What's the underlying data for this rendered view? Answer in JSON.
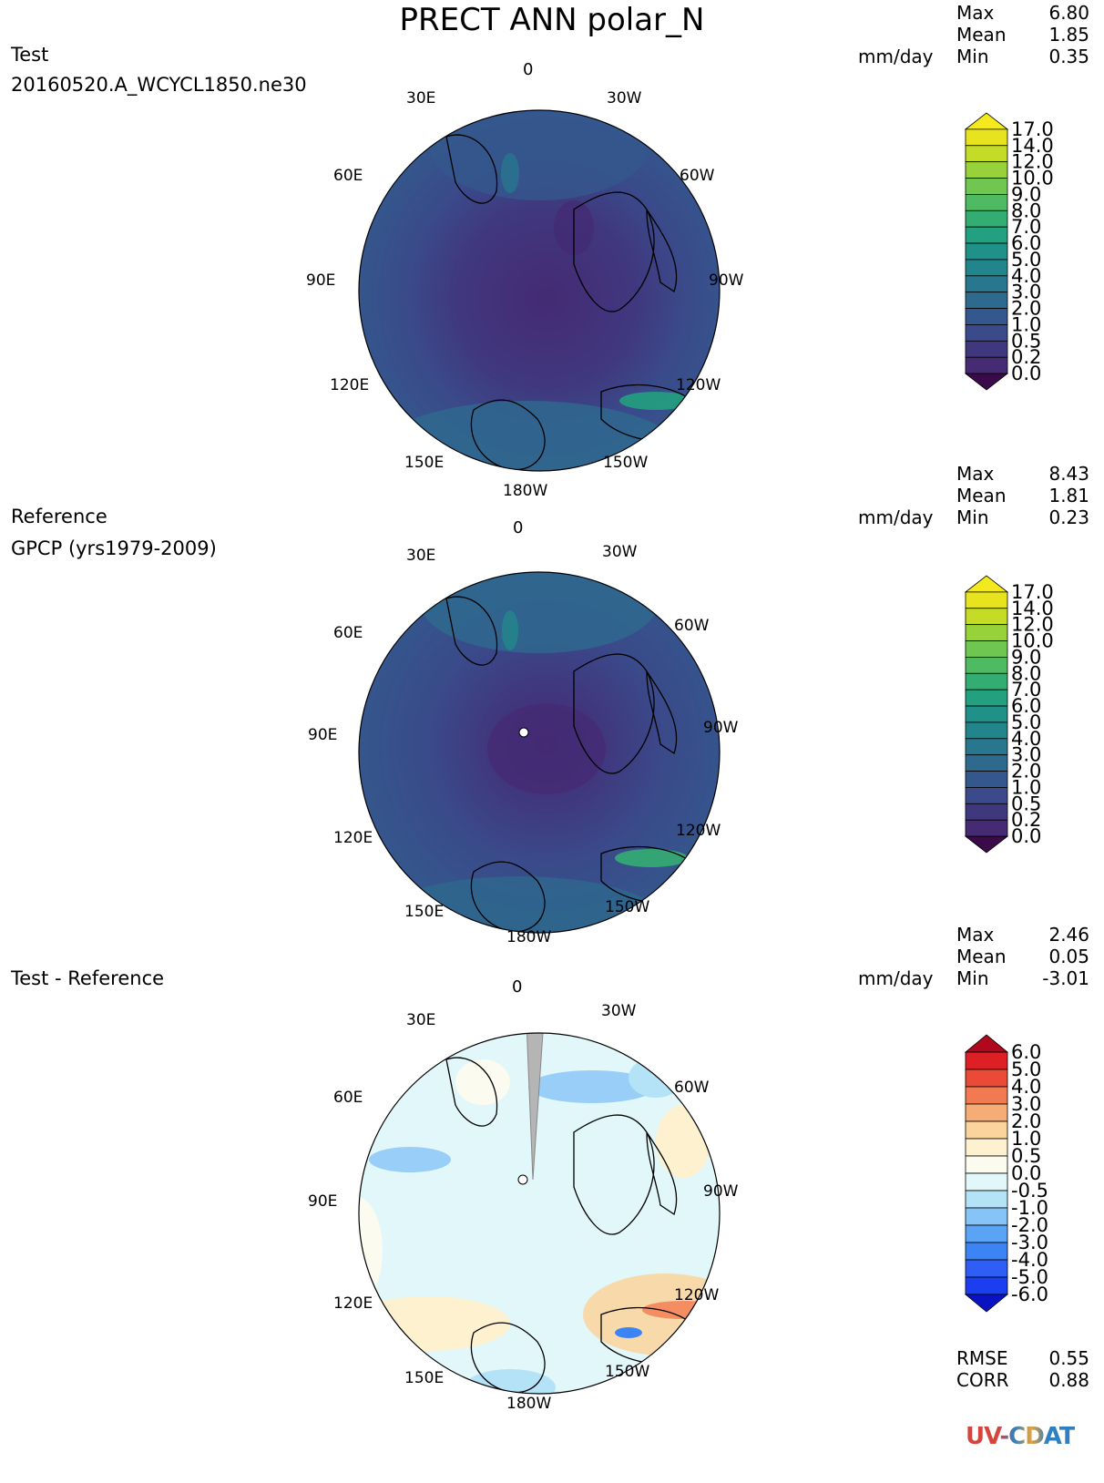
{
  "title": "PRECT ANN polar_N",
  "logo": "UV-CDAT",
  "panels": [
    {
      "label": "Test",
      "sublabel": "20160520.A_WCYCL1850.ne30",
      "units": "mm/day",
      "stats": {
        "max_label": "Max",
        "max": "6.80",
        "mean_label": "Mean",
        "mean": "1.85",
        "min_label": "Min",
        "min": "0.35"
      }
    },
    {
      "label": "Reference",
      "sublabel": "GPCP (yrs1979-2009)",
      "units": "mm/day",
      "stats": {
        "max_label": "Max",
        "max": "8.43",
        "mean_label": "Mean",
        "mean": "1.81",
        "min_label": "Min",
        "min": "0.23"
      }
    },
    {
      "label": "Test - Reference",
      "sublabel": "",
      "units": "mm/day",
      "stats": {
        "max_label": "Max",
        "max": "2.46",
        "mean_label": "Mean",
        "mean": "0.05",
        "min_label": "Min",
        "min": "-3.01"
      }
    }
  ],
  "metrics": {
    "rmse_label": "RMSE",
    "rmse": "0.55",
    "corr_label": "CORR",
    "corr": "0.88"
  },
  "chart_data": [
    {
      "type": "heatmap",
      "projection": "north-polar-stereographic",
      "title": "Test",
      "longitude_labels": [
        "0",
        "30W",
        "60W",
        "90W",
        "120W",
        "150W",
        "180W",
        "150E",
        "120E",
        "90E",
        "60E",
        "30E"
      ],
      "colorbar": {
        "levels": [
          "0.0",
          "0.2",
          "0.5",
          "1.0",
          "2.0",
          "3.0",
          "4.0",
          "5.0",
          "6.0",
          "7.0",
          "8.0",
          "9.0",
          "10.0",
          "12.0",
          "14.0",
          "17.0"
        ],
        "colors": [
          "#3b0a4a",
          "#452a74",
          "#40387f",
          "#3a4a8a",
          "#34588d",
          "#2e6a8e",
          "#28778e",
          "#23858c",
          "#1f9188",
          "#23a07f",
          "#34ad72",
          "#4eba62",
          "#6fc650",
          "#98d23a",
          "#c4dc26",
          "#e8e31f",
          "#f4e81e"
        ]
      }
    },
    {
      "type": "heatmap",
      "projection": "north-polar-stereographic",
      "title": "Reference",
      "longitude_labels": [
        "0",
        "30W",
        "60W",
        "90W",
        "120W",
        "150W",
        "180W",
        "150E",
        "120E",
        "90E",
        "60E",
        "30E"
      ],
      "colorbar": {
        "levels": [
          "0.0",
          "0.2",
          "0.5",
          "1.0",
          "2.0",
          "3.0",
          "4.0",
          "5.0",
          "6.0",
          "7.0",
          "8.0",
          "9.0",
          "10.0",
          "12.0",
          "14.0",
          "17.0"
        ],
        "colors": [
          "#3b0a4a",
          "#452a74",
          "#40387f",
          "#3a4a8a",
          "#34588d",
          "#2e6a8e",
          "#28778e",
          "#23858c",
          "#1f9188",
          "#23a07f",
          "#34ad72",
          "#4eba62",
          "#6fc650",
          "#98d23a",
          "#c4dc26",
          "#e8e31f",
          "#f4e81e"
        ]
      }
    },
    {
      "type": "heatmap",
      "projection": "north-polar-stereographic",
      "title": "Test - Reference",
      "longitude_labels": [
        "0",
        "30W",
        "60W",
        "90W",
        "120W",
        "150W",
        "180W",
        "150E",
        "120E",
        "90E",
        "60E",
        "30E"
      ],
      "colorbar": {
        "levels": [
          "-6.0",
          "-5.0",
          "-4.0",
          "-3.0",
          "-2.0",
          "-1.0",
          "-0.5",
          "0.0",
          "0.5",
          "1.0",
          "2.0",
          "3.0",
          "4.0",
          "5.0",
          "6.0"
        ],
        "colors": [
          "#0a13c2",
          "#1a3ef0",
          "#2f5ef5",
          "#3c84f5",
          "#5aa3f5",
          "#86c3f6",
          "#b4e2f7",
          "#e2f7f9",
          "#fbfbf0",
          "#fdf1cf",
          "#fbd39c",
          "#f6ac75",
          "#f27a50",
          "#ea4a36",
          "#dd1f26",
          "#b0091e"
        ]
      }
    }
  ]
}
